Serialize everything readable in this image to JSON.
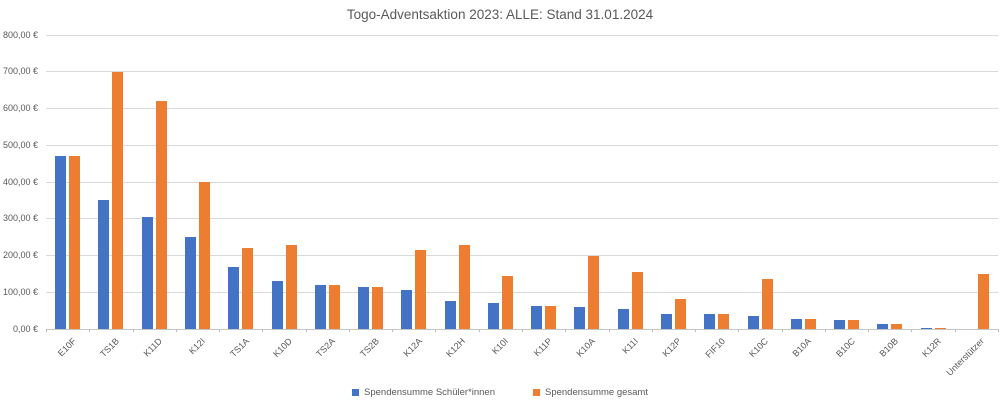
{
  "title": "Togo-Adventsaktion 2023: ALLE: Stand 31.01.2024",
  "colors": {
    "series_schueler": "#4472C4",
    "series_gesamt": "#ED7D31",
    "gridline": "#D9D9D9",
    "axis_text": "#595959",
    "background": "#FFFFFF"
  },
  "chart_data": {
    "type": "bar",
    "title": "Togo-Adventsaktion 2023: ALLE: Stand 31.01.2024",
    "categories": [
      "E10F",
      "TS1B",
      "K11D",
      "K12I",
      "TS1A",
      "K10D",
      "TS2A",
      "TS2B",
      "K12A",
      "K12H",
      "K10I",
      "K11P",
      "K10A",
      "K11I",
      "K12P",
      "FIF10",
      "K10C",
      "B10A",
      "B10C",
      "B10B",
      "K12R",
      "Unterstützer"
    ],
    "series": [
      {
        "name": "Spendensumme Schüler*innen",
        "color": "#4472C4",
        "values": [
          470,
          350,
          305,
          250,
          170,
          130,
          120,
          114,
          106,
          76,
          70,
          63,
          59,
          54,
          40,
          40,
          35,
          27,
          25,
          13,
          3,
          0
        ]
      },
      {
        "name": "Spendensumme gesamt",
        "color": "#ED7D31",
        "values": [
          470,
          700,
          620,
          400,
          220,
          230,
          120,
          114,
          215,
          228,
          144,
          63,
          200,
          155,
          82,
          40,
          136,
          27,
          25,
          15,
          3,
          150
        ]
      }
    ],
    "xlabel": "",
    "ylabel": "",
    "ylim": [
      0,
      800
    ],
    "y_tick_values": [
      0,
      100,
      200,
      300,
      400,
      500,
      600,
      700,
      800
    ],
    "y_ticks": [
      "0,00 €",
      "100,00 €",
      "200,00 €",
      "300,00 €",
      "400,00 €",
      "500,00 €",
      "600,00 €",
      "700,00 €",
      "800,00 €"
    ],
    "grid": true,
    "legend_position": "bottom"
  }
}
